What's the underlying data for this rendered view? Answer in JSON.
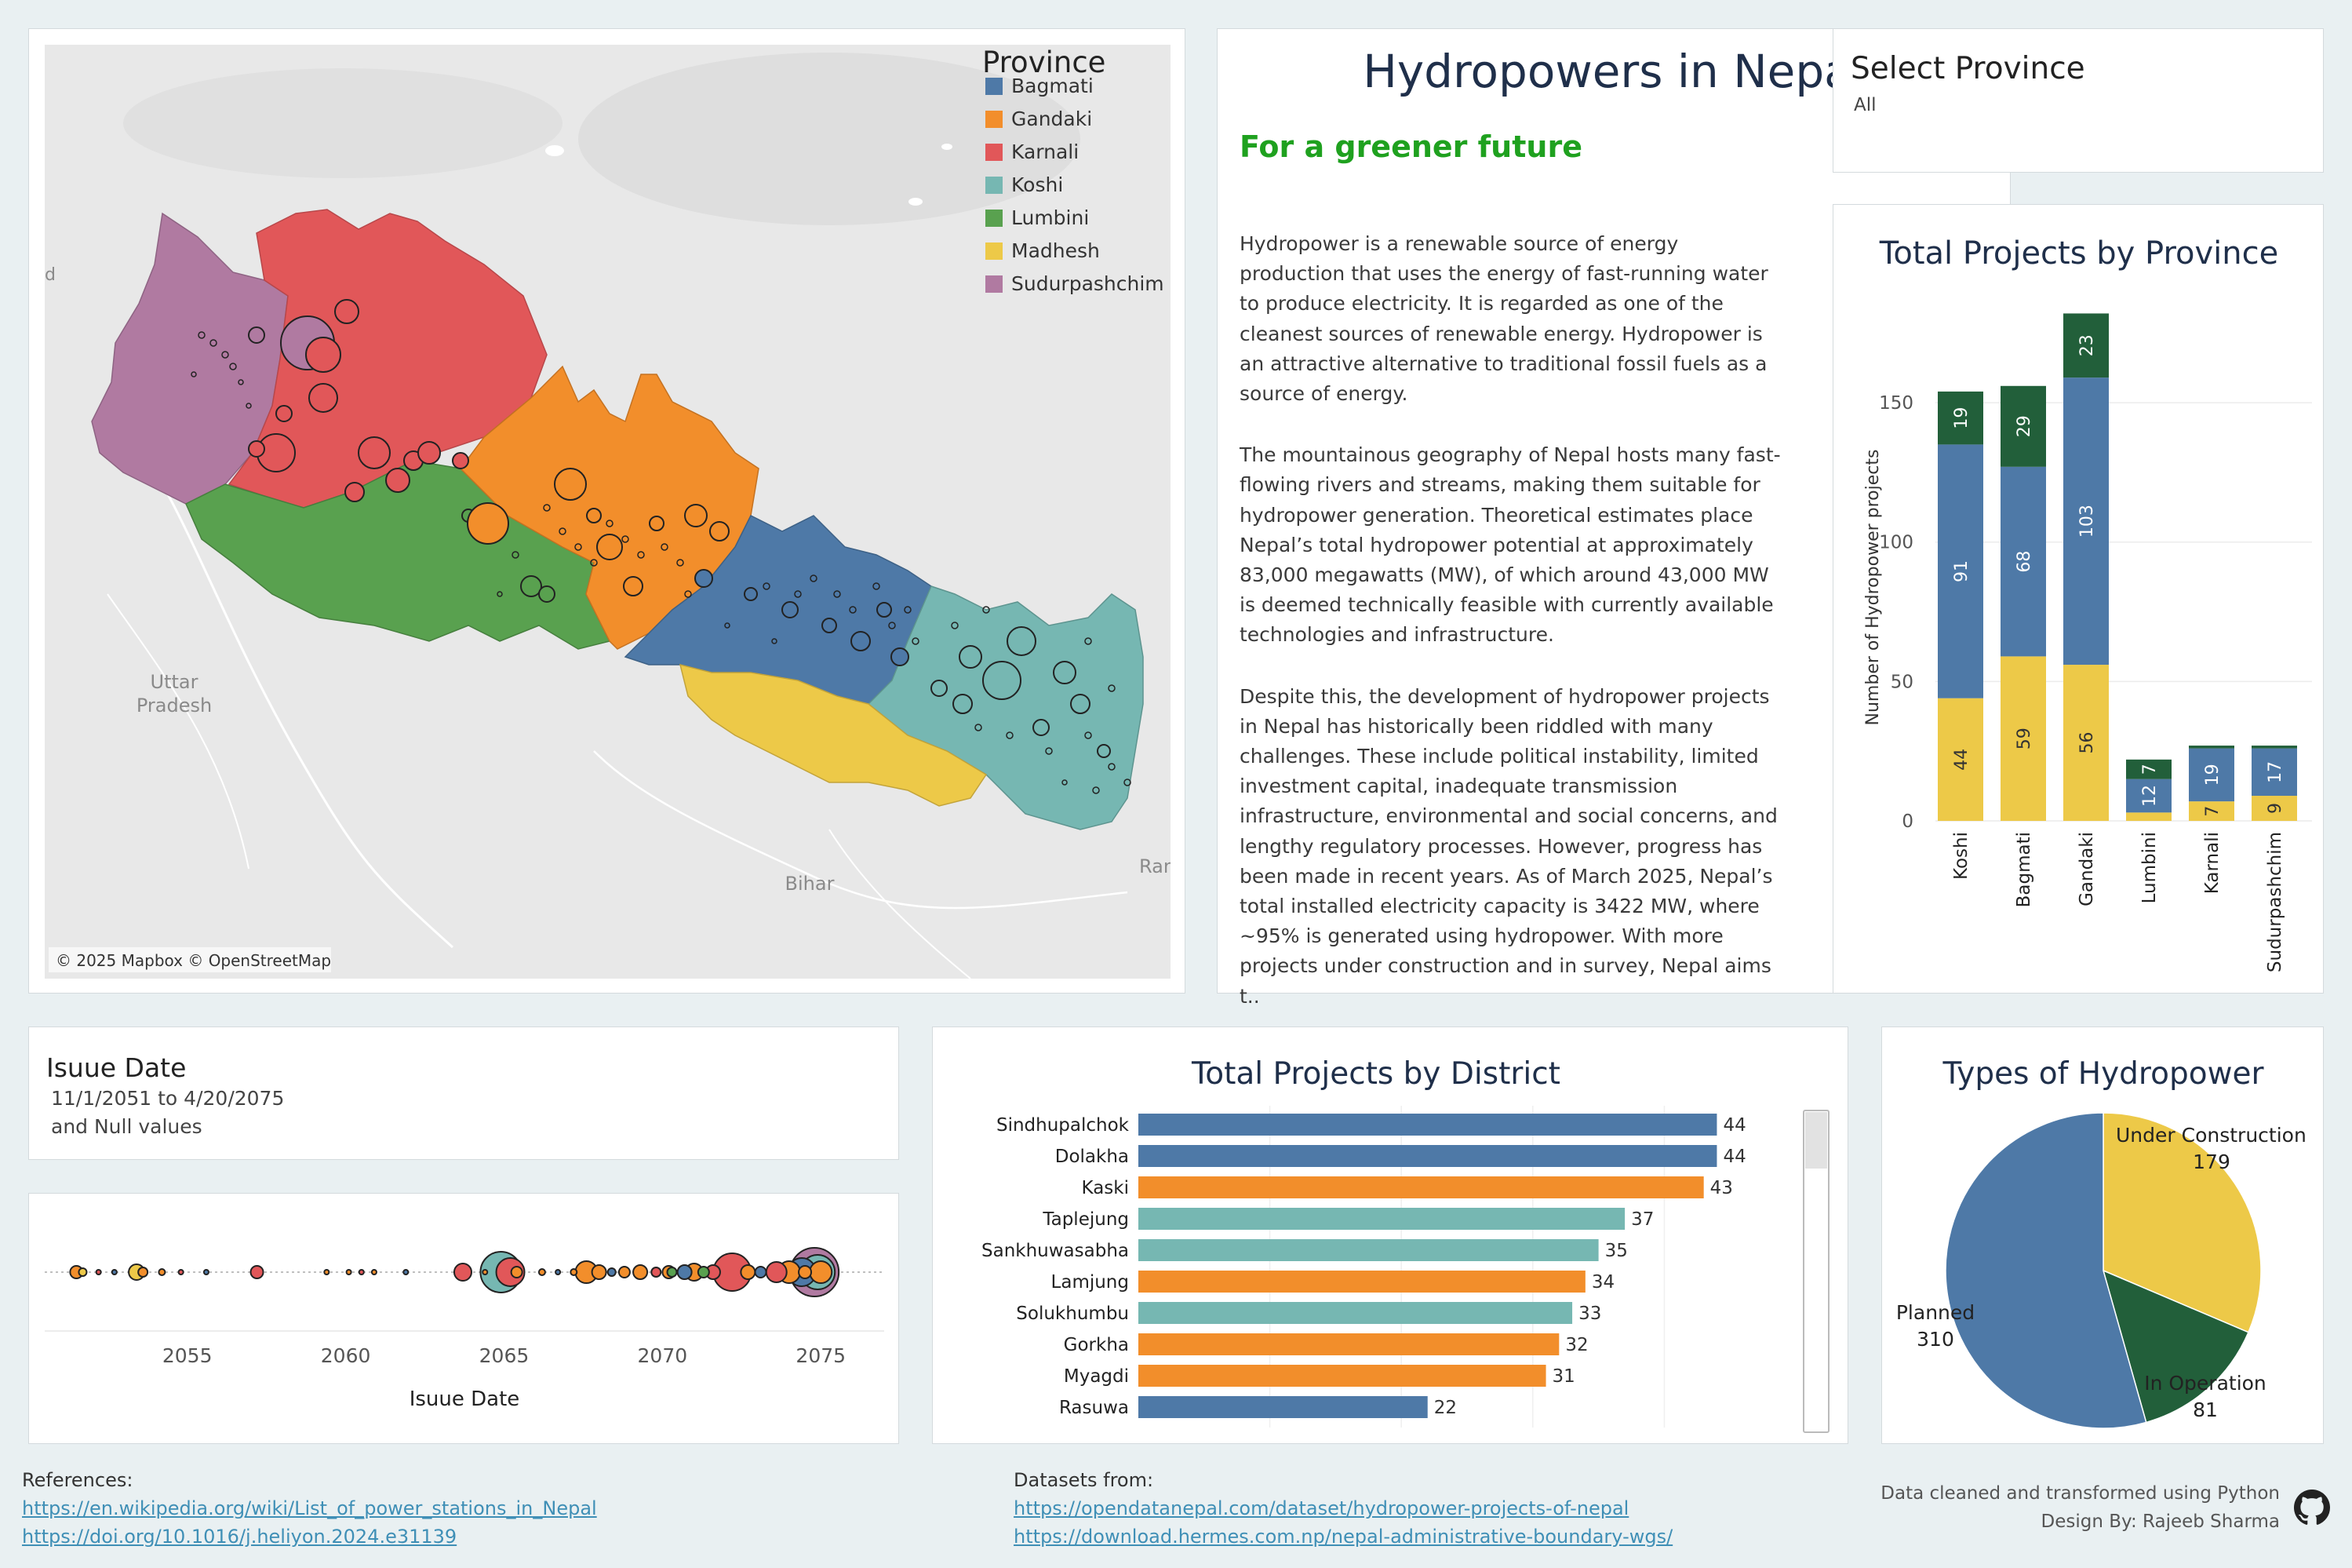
{
  "map": {
    "legend_title": "Province",
    "legend_items": [
      {
        "label": "Bagmati",
        "color": "#4e79a7"
      },
      {
        "label": "Gandaki",
        "color": "#f28e2b"
      },
      {
        "label": "Karnali",
        "color": "#e15759"
      },
      {
        "label": "Koshi",
        "color": "#76b7b2"
      },
      {
        "label": "Lumbini",
        "color": "#59a14f"
      },
      {
        "label": "Madhesh",
        "color": "#edc948"
      },
      {
        "label": "Sudurpashchim",
        "color": "#b07aa1"
      }
    ],
    "place_labels": {
      "uttar": "Uttar",
      "pradesh": "Pradesh",
      "bihar": "Bihar",
      "rangp": "Rangp",
      "edge_d": "d"
    },
    "attribution": "© 2025 Mapbox © OpenStreetMap"
  },
  "header": {
    "title": "Hydropowers in Nepal",
    "subtitle": "For a greener future",
    "paragraphs": [
      "Hydropower is a renewable source of energy production that uses the energy of fast-running water to produce electricity. It is regarded as one of the cleanest sources of renewable energy. Hydropower is an attractive alternative to traditional fossil fuels as a source of energy.",
      "The mountainous geography of Nepal hosts many fast-flowing rivers and streams, making them suitable for hydropower generation. Theoretical estimates place Nepal’s total hydropower potential at approximately 83,000 megawatts (MW), of which around 43,000 MW is deemed technically feasible with currently available technologies and infrastructure.",
      "Despite this, the development of hydropower projects in Nepal has historically been riddled with many challenges. These include political instability, limited investment capital, inadequate transmission infrastructure, environmental and social concerns, and lengthy regulatory processes. However, progress has been made in recent years. As of March 2025, Nepal’s total installed electricity capacity is 3422 MW, where ~95% is generated using hydropower. With more projects under construction and in survey, Nepal aims t.."
    ]
  },
  "filter_province": {
    "label": "Select Province",
    "value": "All"
  },
  "filter_date": {
    "label": "Isuue Date",
    "range": "11/1/2051 to 4/20/2075",
    "null_note": "and Null values"
  },
  "colors": {
    "planned": "#4e79a7",
    "under_construction": "#edc948",
    "in_operation": "#225f3a"
  },
  "chart_data": [
    {
      "type": "bar",
      "stacked": true,
      "title": "Total Projects by Province",
      "ylabel": "Number of Hydropower projects",
      "ylim": [
        0,
        190
      ],
      "yticks": [
        0,
        50,
        100,
        150
      ],
      "categories": [
        "Koshi",
        "Bagmati",
        "Gandaki",
        "Lumbini",
        "Karnali",
        "Sudurpashchim"
      ],
      "series": [
        {
          "key": "under_construction",
          "values": [
            44,
            59,
            56,
            3,
            7,
            9
          ]
        },
        {
          "key": "planned",
          "values": [
            91,
            68,
            103,
            12,
            19,
            17
          ]
        },
        {
          "key": "in_operation",
          "values": [
            19,
            29,
            23,
            7,
            1,
            1
          ]
        }
      ],
      "visible_labels": [
        [
          "44",
          "59",
          "56",
          "",
          "7",
          "9"
        ],
        [
          "91",
          "68",
          "103",
          "12",
          "19",
          "17"
        ],
        [
          "19",
          "29",
          "23",
          "7",
          "",
          ""
        ]
      ]
    },
    {
      "type": "bar",
      "orientation": "horizontal",
      "title": "Total Projects by District",
      "xlim": [
        0,
        50
      ],
      "categories": [
        "Sindhupalchok",
        "Dolakha",
        "Kaski",
        "Taplejung",
        "Sankhuwasabha",
        "Lamjung",
        "Solukhumbu",
        "Gorkha",
        "Myagdi",
        "Rasuwa"
      ],
      "values": [
        44,
        44,
        43,
        37,
        35,
        34,
        33,
        32,
        31,
        22
      ],
      "colors": [
        "#4e79a7",
        "#4e79a7",
        "#f28e2b",
        "#76b7b2",
        "#76b7b2",
        "#f28e2b",
        "#76b7b2",
        "#f28e2b",
        "#f28e2b",
        "#4e79a7"
      ]
    },
    {
      "type": "pie",
      "title": "Types of Hydropower",
      "slices": [
        {
          "label": "Under Construction",
          "value": 179,
          "color": "#edc948"
        },
        {
          "label": "In Operation",
          "value": 81,
          "color": "#225f3a"
        },
        {
          "label": "Planned",
          "value": 310,
          "color": "#4e79a7"
        }
      ]
    },
    {
      "type": "scatter",
      "xlabel": "Isuue Date",
      "xlim": [
        2050.5,
        2077
      ],
      "xticks": [
        2055,
        2060,
        2065,
        2070,
        2075
      ],
      "points": [
        {
          "x": 2051.5,
          "r": 8,
          "c": "#f28e2b"
        },
        {
          "x": 2051.7,
          "r": 5,
          "c": "#edc948"
        },
        {
          "x": 2052.2,
          "r": 3,
          "c": "#e15759"
        },
        {
          "x": 2052.7,
          "r": 3,
          "c": "#4e79a7"
        },
        {
          "x": 2053.4,
          "r": 10,
          "c": "#edc948"
        },
        {
          "x": 2053.6,
          "r": 6,
          "c": "#f28e2b"
        },
        {
          "x": 2054.2,
          "r": 4,
          "c": "#f28e2b"
        },
        {
          "x": 2054.8,
          "r": 3,
          "c": "#e15759"
        },
        {
          "x": 2055.6,
          "r": 3,
          "c": "#4e79a7"
        },
        {
          "x": 2057.2,
          "r": 8,
          "c": "#e15759"
        },
        {
          "x": 2059.4,
          "r": 3,
          "c": "#f28e2b"
        },
        {
          "x": 2060.1,
          "r": 3,
          "c": "#f28e2b"
        },
        {
          "x": 2060.5,
          "r": 3,
          "c": "#e15759"
        },
        {
          "x": 2060.9,
          "r": 3,
          "c": "#f28e2b"
        },
        {
          "x": 2061.9,
          "r": 3,
          "c": "#4e79a7"
        },
        {
          "x": 2063.7,
          "r": 11,
          "c": "#e15759"
        },
        {
          "x": 2064.4,
          "r": 3,
          "c": "#f28e2b"
        },
        {
          "x": 2064.9,
          "r": 26,
          "c": "#76b7b2"
        },
        {
          "x": 2065.2,
          "r": 18,
          "c": "#e15759"
        },
        {
          "x": 2065.4,
          "r": 7,
          "c": "#f28e2b"
        },
        {
          "x": 2066.2,
          "r": 4,
          "c": "#f28e2b"
        },
        {
          "x": 2066.7,
          "r": 3,
          "c": "#4e79a7"
        },
        {
          "x": 2067.2,
          "r": 4,
          "c": "#f28e2b"
        },
        {
          "x": 2067.6,
          "r": 14,
          "c": "#f28e2b"
        },
        {
          "x": 2068.0,
          "r": 9,
          "c": "#f28e2b"
        },
        {
          "x": 2068.4,
          "r": 5,
          "c": "#4e79a7"
        },
        {
          "x": 2068.8,
          "r": 7,
          "c": "#f28e2b"
        },
        {
          "x": 2069.3,
          "r": 9,
          "c": "#f28e2b"
        },
        {
          "x": 2069.8,
          "r": 6,
          "c": "#e15759"
        },
        {
          "x": 2070.2,
          "r": 8,
          "c": "#f28e2b"
        },
        {
          "x": 2070.3,
          "r": 6,
          "c": "#59a14f"
        },
        {
          "x": 2070.7,
          "r": 9,
          "c": "#4e79a7"
        },
        {
          "x": 2071.0,
          "r": 11,
          "c": "#f28e2b"
        },
        {
          "x": 2071.3,
          "r": 7,
          "c": "#59a14f"
        },
        {
          "x": 2071.6,
          "r": 9,
          "c": "#e15759"
        },
        {
          "x": 2072.2,
          "r": 24,
          "c": "#e15759"
        },
        {
          "x": 2072.7,
          "r": 9,
          "c": "#f28e2b"
        },
        {
          "x": 2073.1,
          "r": 7,
          "c": "#4e79a7"
        },
        {
          "x": 2073.6,
          "r": 13,
          "c": "#e15759"
        },
        {
          "x": 2074.0,
          "r": 14,
          "c": "#f28e2b"
        },
        {
          "x": 2074.4,
          "r": 18,
          "c": "#4e79a7"
        },
        {
          "x": 2074.8,
          "r": 31,
          "c": "#b07aa1"
        },
        {
          "x": 2074.9,
          "r": 22,
          "c": "#76b7b2"
        },
        {
          "x": 2075.0,
          "r": 14,
          "c": "#f28e2b"
        },
        {
          "x": 2074.5,
          "r": 8,
          "c": "#f28e2b"
        }
      ]
    }
  ],
  "footer": {
    "references_label": "References:",
    "ref1": "https://en.wikipedia.org/wiki/List_of_power_stations_in_Nepal",
    "ref2": "https://doi.org/10.1016/j.heliyon.2024.e31139",
    "datasets_label": "Datasets from:",
    "data1": "https://opendatanepal.com/dataset/hydropower-projects-of-nepal",
    "data2": "https://download.hermes.com.np/nepal-administrative-boundary-wgs/",
    "credit1": "Data cleaned and transformed using Python",
    "credit2": "Design By: Rajeeb Sharma"
  }
}
